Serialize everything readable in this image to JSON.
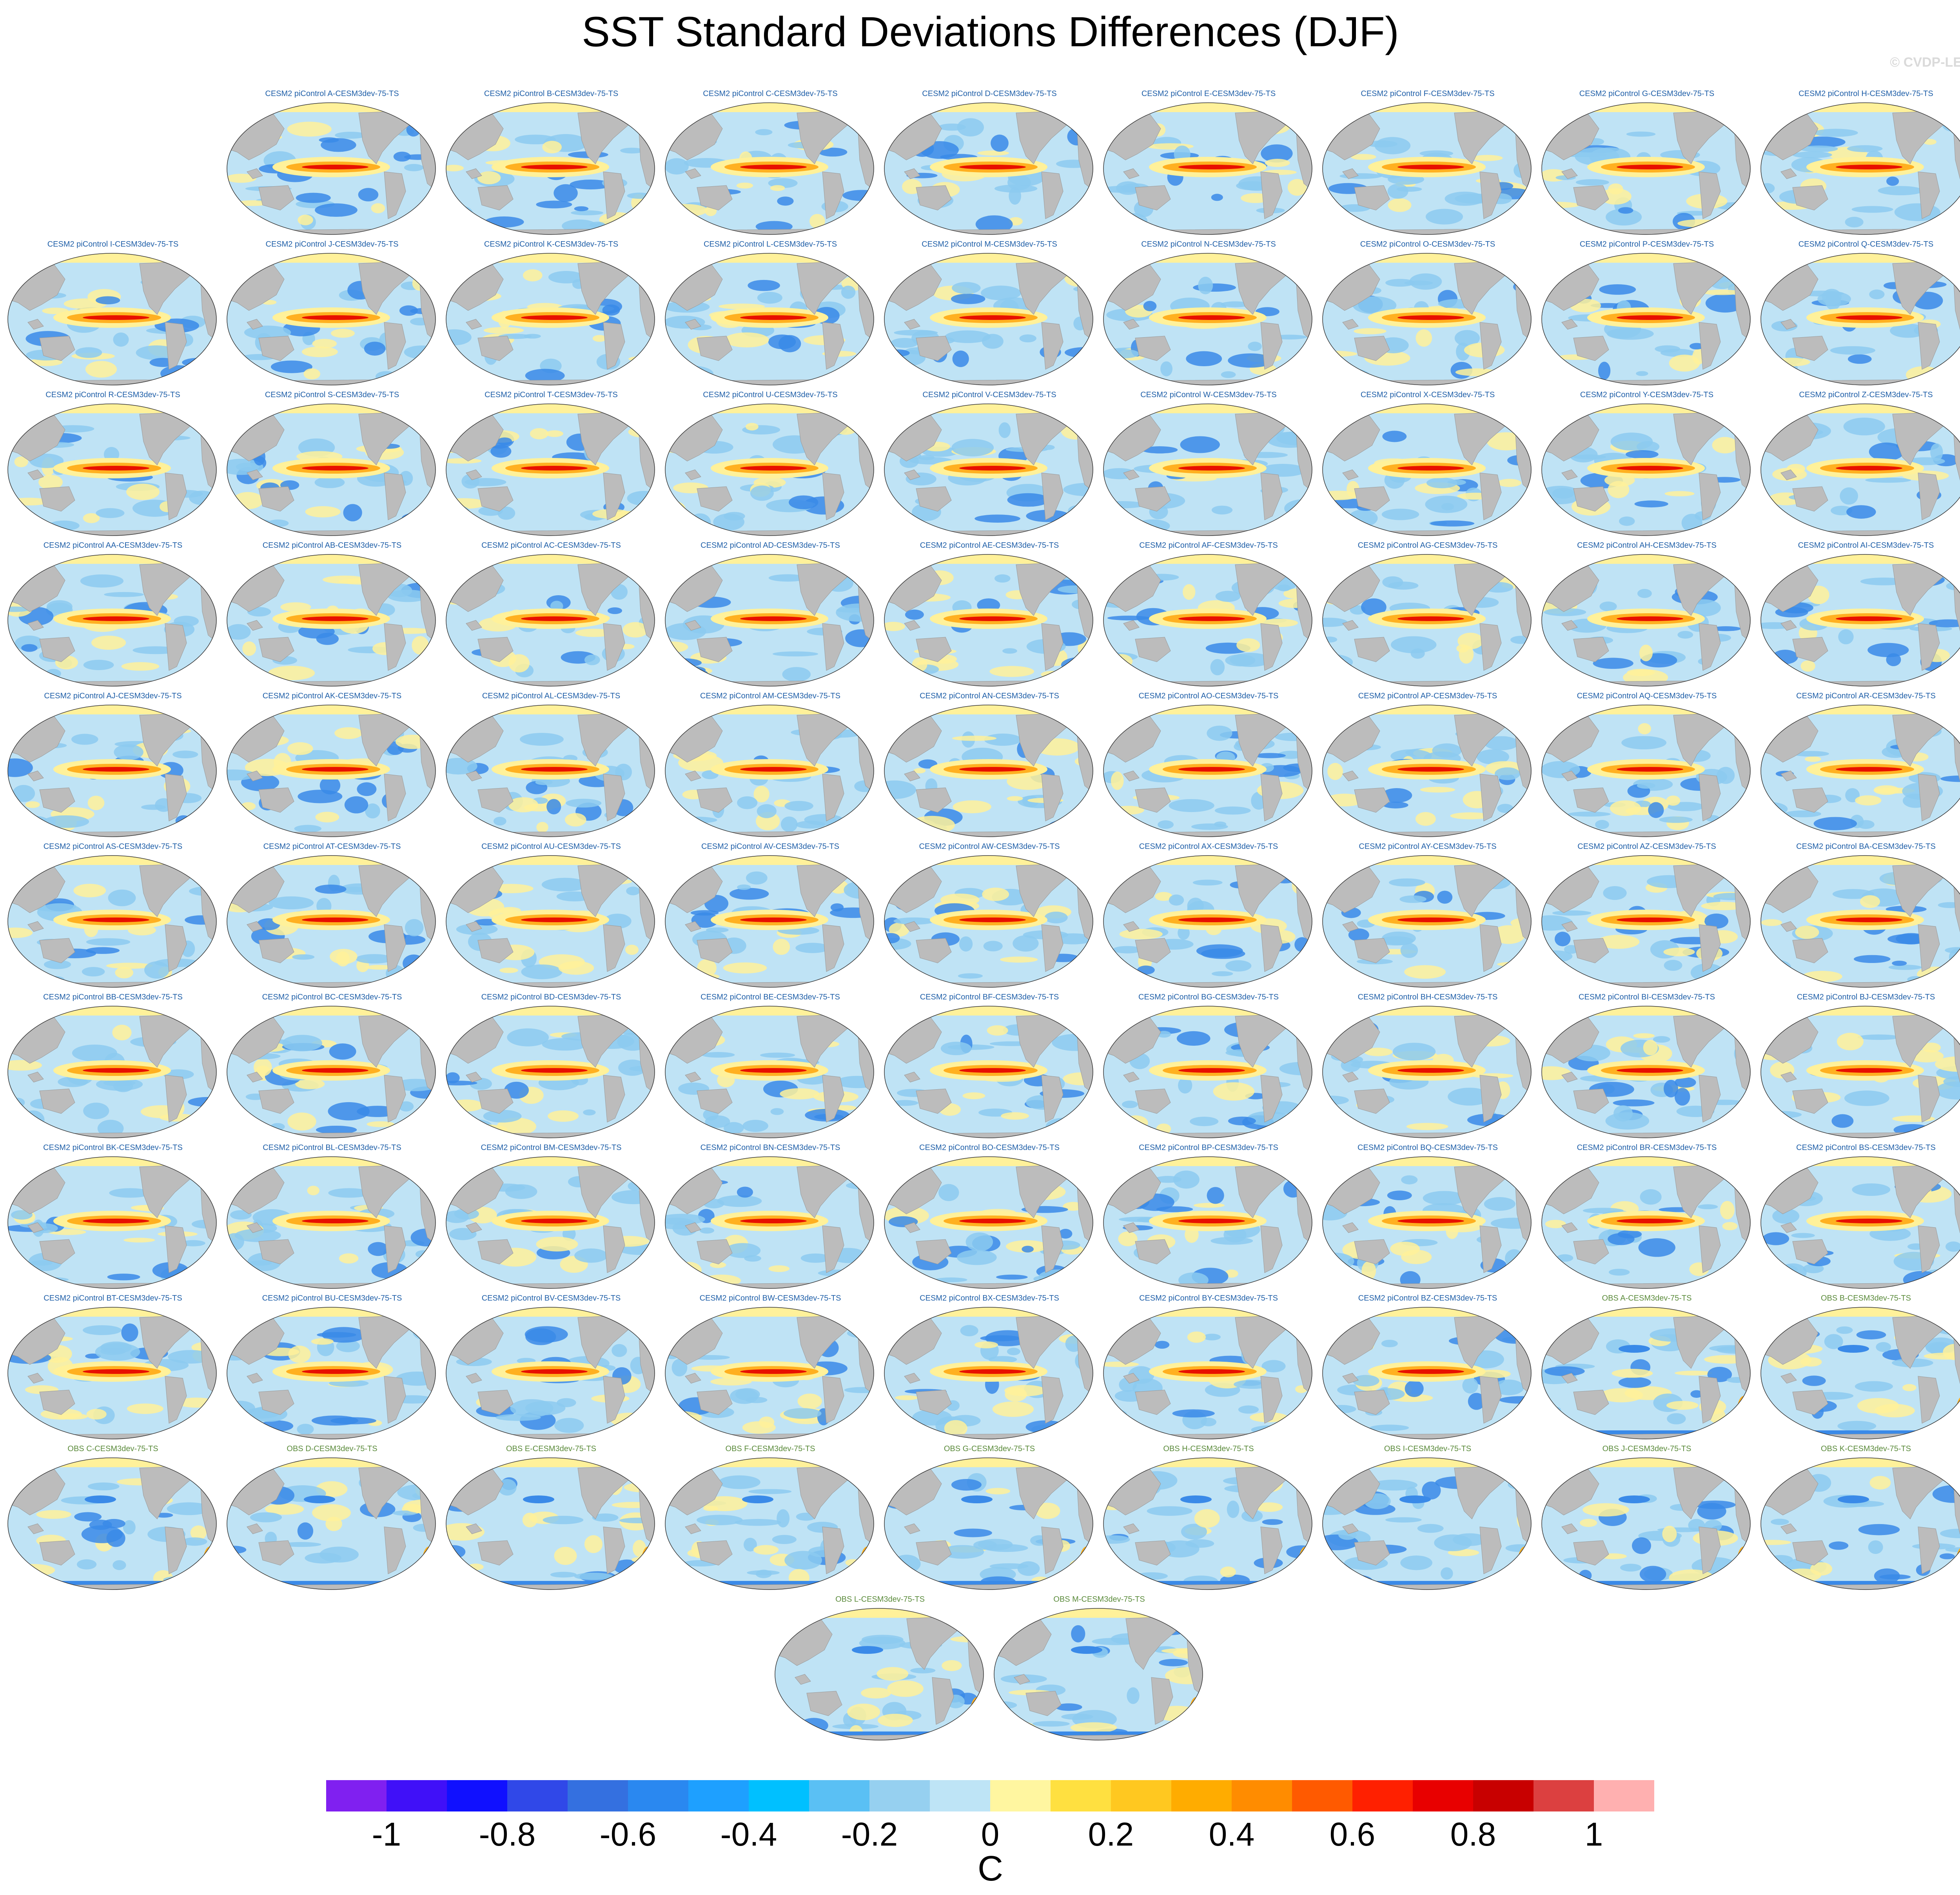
{
  "figure": {
    "title": "SST Standard Deviations Differences (DJF)",
    "copyright": "© CVDP-LE",
    "units": "C"
  },
  "panels": [
    {
      "title": "CESM2 piControl A-CESM3dev-75-TS",
      "kind": "model"
    },
    {
      "title": "CESM2 piControl B-CESM3dev-75-TS",
      "kind": "model"
    },
    {
      "title": "CESM2 piControl C-CESM3dev-75-TS",
      "kind": "model"
    },
    {
      "title": "CESM2 piControl D-CESM3dev-75-TS",
      "kind": "model"
    },
    {
      "title": "CESM2 piControl E-CESM3dev-75-TS",
      "kind": "model"
    },
    {
      "title": "CESM2 piControl F-CESM3dev-75-TS",
      "kind": "model"
    },
    {
      "title": "CESM2 piControl G-CESM3dev-75-TS",
      "kind": "model"
    },
    {
      "title": "CESM2 piControl H-CESM3dev-75-TS",
      "kind": "model"
    },
    {
      "title": "CESM2 piControl I-CESM3dev-75-TS",
      "kind": "model"
    },
    {
      "title": "CESM2 piControl J-CESM3dev-75-TS",
      "kind": "model"
    },
    {
      "title": "CESM2 piControl K-CESM3dev-75-TS",
      "kind": "model"
    },
    {
      "title": "CESM2 piControl L-CESM3dev-75-TS",
      "kind": "model"
    },
    {
      "title": "CESM2 piControl M-CESM3dev-75-TS",
      "kind": "model"
    },
    {
      "title": "CESM2 piControl N-CESM3dev-75-TS",
      "kind": "model"
    },
    {
      "title": "CESM2 piControl O-CESM3dev-75-TS",
      "kind": "model"
    },
    {
      "title": "CESM2 piControl P-CESM3dev-75-TS",
      "kind": "model"
    },
    {
      "title": "CESM2 piControl Q-CESM3dev-75-TS",
      "kind": "model"
    },
    {
      "title": "CESM2 piControl R-CESM3dev-75-TS",
      "kind": "model"
    },
    {
      "title": "CESM2 piControl S-CESM3dev-75-TS",
      "kind": "model"
    },
    {
      "title": "CESM2 piControl T-CESM3dev-75-TS",
      "kind": "model"
    },
    {
      "title": "CESM2 piControl U-CESM3dev-75-TS",
      "kind": "model"
    },
    {
      "title": "CESM2 piControl V-CESM3dev-75-TS",
      "kind": "model"
    },
    {
      "title": "CESM2 piControl W-CESM3dev-75-TS",
      "kind": "model"
    },
    {
      "title": "CESM2 piControl X-CESM3dev-75-TS",
      "kind": "model"
    },
    {
      "title": "CESM2 piControl Y-CESM3dev-75-TS",
      "kind": "model"
    },
    {
      "title": "CESM2 piControl Z-CESM3dev-75-TS",
      "kind": "model"
    },
    {
      "title": "CESM2 piControl AA-CESM3dev-75-TS",
      "kind": "model"
    },
    {
      "title": "CESM2 piControl AB-CESM3dev-75-TS",
      "kind": "model"
    },
    {
      "title": "CESM2 piControl AC-CESM3dev-75-TS",
      "kind": "model"
    },
    {
      "title": "CESM2 piControl AD-CESM3dev-75-TS",
      "kind": "model"
    },
    {
      "title": "CESM2 piControl AE-CESM3dev-75-TS",
      "kind": "model"
    },
    {
      "title": "CESM2 piControl AF-CESM3dev-75-TS",
      "kind": "model"
    },
    {
      "title": "CESM2 piControl AG-CESM3dev-75-TS",
      "kind": "model"
    },
    {
      "title": "CESM2 piControl AH-CESM3dev-75-TS",
      "kind": "model"
    },
    {
      "title": "CESM2 piControl AI-CESM3dev-75-TS",
      "kind": "model"
    },
    {
      "title": "CESM2 piControl AJ-CESM3dev-75-TS",
      "kind": "model"
    },
    {
      "title": "CESM2 piControl AK-CESM3dev-75-TS",
      "kind": "model"
    },
    {
      "title": "CESM2 piControl AL-CESM3dev-75-TS",
      "kind": "model"
    },
    {
      "title": "CESM2 piControl AM-CESM3dev-75-TS",
      "kind": "model"
    },
    {
      "title": "CESM2 piControl AN-CESM3dev-75-TS",
      "kind": "model"
    },
    {
      "title": "CESM2 piControl AO-CESM3dev-75-TS",
      "kind": "model"
    },
    {
      "title": "CESM2 piControl AP-CESM3dev-75-TS",
      "kind": "model"
    },
    {
      "title": "CESM2 piControl AQ-CESM3dev-75-TS",
      "kind": "model"
    },
    {
      "title": "CESM2 piControl AR-CESM3dev-75-TS",
      "kind": "model"
    },
    {
      "title": "CESM2 piControl AS-CESM3dev-75-TS",
      "kind": "model"
    },
    {
      "title": "CESM2 piControl AT-CESM3dev-75-TS",
      "kind": "model"
    },
    {
      "title": "CESM2 piControl AU-CESM3dev-75-TS",
      "kind": "model"
    },
    {
      "title": "CESM2 piControl AV-CESM3dev-75-TS",
      "kind": "model"
    },
    {
      "title": "CESM2 piControl AW-CESM3dev-75-TS",
      "kind": "model"
    },
    {
      "title": "CESM2 piControl AX-CESM3dev-75-TS",
      "kind": "model"
    },
    {
      "title": "CESM2 piControl AY-CESM3dev-75-TS",
      "kind": "model"
    },
    {
      "title": "CESM2 piControl AZ-CESM3dev-75-TS",
      "kind": "model"
    },
    {
      "title": "CESM2 piControl BA-CESM3dev-75-TS",
      "kind": "model"
    },
    {
      "title": "CESM2 piControl BB-CESM3dev-75-TS",
      "kind": "model"
    },
    {
      "title": "CESM2 piControl BC-CESM3dev-75-TS",
      "kind": "model"
    },
    {
      "title": "CESM2 piControl BD-CESM3dev-75-TS",
      "kind": "model"
    },
    {
      "title": "CESM2 piControl BE-CESM3dev-75-TS",
      "kind": "model"
    },
    {
      "title": "CESM2 piControl BF-CESM3dev-75-TS",
      "kind": "model"
    },
    {
      "title": "CESM2 piControl BG-CESM3dev-75-TS",
      "kind": "model"
    },
    {
      "title": "CESM2 piControl BH-CESM3dev-75-TS",
      "kind": "model"
    },
    {
      "title": "CESM2 piControl BI-CESM3dev-75-TS",
      "kind": "model"
    },
    {
      "title": "CESM2 piControl BJ-CESM3dev-75-TS",
      "kind": "model"
    },
    {
      "title": "CESM2 piControl BK-CESM3dev-75-TS",
      "kind": "model"
    },
    {
      "title": "CESM2 piControl BL-CESM3dev-75-TS",
      "kind": "model"
    },
    {
      "title": "CESM2 piControl BM-CESM3dev-75-TS",
      "kind": "model"
    },
    {
      "title": "CESM2 piControl BN-CESM3dev-75-TS",
      "kind": "model"
    },
    {
      "title": "CESM2 piControl BO-CESM3dev-75-TS",
      "kind": "model"
    },
    {
      "title": "CESM2 piControl BP-CESM3dev-75-TS",
      "kind": "model"
    },
    {
      "title": "CESM2 piControl BQ-CESM3dev-75-TS",
      "kind": "model"
    },
    {
      "title": "CESM2 piControl BR-CESM3dev-75-TS",
      "kind": "model"
    },
    {
      "title": "CESM2 piControl BS-CESM3dev-75-TS",
      "kind": "model"
    },
    {
      "title": "CESM2 piControl BT-CESM3dev-75-TS",
      "kind": "model"
    },
    {
      "title": "CESM2 piControl BU-CESM3dev-75-TS",
      "kind": "model"
    },
    {
      "title": "CESM2 piControl BV-CESM3dev-75-TS",
      "kind": "model"
    },
    {
      "title": "CESM2 piControl BW-CESM3dev-75-TS",
      "kind": "model"
    },
    {
      "title": "CESM2 piControl BX-CESM3dev-75-TS",
      "kind": "model"
    },
    {
      "title": "CESM2 piControl BY-CESM3dev-75-TS",
      "kind": "model"
    },
    {
      "title": "CESM2 piControl BZ-CESM3dev-75-TS",
      "kind": "model"
    },
    {
      "title": "OBS A-CESM3dev-75-TS",
      "kind": "obs"
    },
    {
      "title": "OBS B-CESM3dev-75-TS",
      "kind": "obs"
    },
    {
      "title": "OBS C-CESM3dev-75-TS",
      "kind": "obs"
    },
    {
      "title": "OBS D-CESM3dev-75-TS",
      "kind": "obs"
    },
    {
      "title": "OBS E-CESM3dev-75-TS",
      "kind": "obs"
    },
    {
      "title": "OBS F-CESM3dev-75-TS",
      "kind": "obs"
    },
    {
      "title": "OBS G-CESM3dev-75-TS",
      "kind": "obs"
    },
    {
      "title": "OBS H-CESM3dev-75-TS",
      "kind": "obs"
    },
    {
      "title": "OBS I-CESM3dev-75-TS",
      "kind": "obs"
    },
    {
      "title": "OBS J-CESM3dev-75-TS",
      "kind": "obs"
    },
    {
      "title": "OBS K-CESM3dev-75-TS",
      "kind": "obs"
    },
    {
      "title": "OBS L-CESM3dev-75-TS",
      "kind": "obs"
    },
    {
      "title": "OBS M-CESM3dev-75-TS",
      "kind": "obs"
    }
  ],
  "colorbar": {
    "colors": [
      "#8020f0",
      "#4010f8",
      "#1010ff",
      "#3048e8",
      "#3470e0",
      "#2a88f0",
      "#1ea0ff",
      "#00c0ff",
      "#5ac0f4",
      "#96d0f0",
      "#bee4f6",
      "#fff6a0",
      "#ffe040",
      "#ffc820",
      "#ffac00",
      "#ff8c00",
      "#ff5a00",
      "#ff2000",
      "#e80000",
      "#c80000",
      "#dc4040",
      "#ffb0b0"
    ],
    "ticks": [
      "-1",
      "-0.8",
      "-0.6",
      "-0.4",
      "-0.2",
      "0",
      "0.2",
      "0.4",
      "0.6",
      "0.8",
      "1"
    ]
  },
  "map_colors": {
    "land": "#bcbcbc",
    "ocean": "#bfe3f5",
    "weak_negative": "#8ccaf0",
    "strong_negative": "#3a8ae8",
    "weak_positive": "#fff19a",
    "moderate_positive": "#ffb020",
    "strong_positive": "#e81000"
  }
}
